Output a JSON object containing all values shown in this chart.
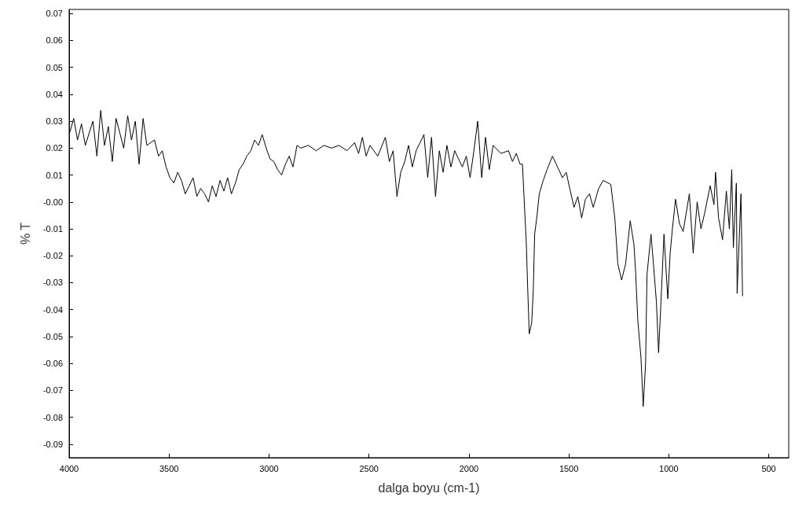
{
  "chart_data": {
    "type": "line",
    "xlabel": "dalga boyu (cm-1)",
    "ylabel": "% T",
    "xlim": [
      4000,
      400
    ],
    "xticks": [
      4000,
      3500,
      3000,
      2500,
      2000,
      1500,
      1000,
      500
    ],
    "ylim": [
      -0.095,
      0.0715
    ],
    "yticks": [
      0.07,
      0.06,
      0.05,
      0.04,
      0.03,
      0.02,
      0.01,
      {
        "value": 0,
        "label": "-0.00"
      },
      -0.01,
      -0.02,
      -0.03,
      -0.04,
      -0.05,
      -0.06,
      -0.07,
      -0.08,
      -0.09
    ],
    "grid": false,
    "marker": "none",
    "line_style": "solid",
    "series": [
      {
        "color": "#000000",
        "x": [
          3996,
          3977,
          3958,
          3938,
          3919,
          3881,
          3861,
          3842,
          3823,
          3804,
          3784,
          3765,
          3727,
          3707,
          3688,
          3669,
          3650,
          3630,
          3611,
          3573,
          3553,
          3534,
          3515,
          3496,
          3476,
          3457,
          3438,
          3419,
          3399,
          3380,
          3361,
          3342,
          3322,
          3303,
          3284,
          3265,
          3245,
          3226,
          3207,
          3188,
          3168,
          3149,
          3130,
          3111,
          3091,
          3072,
          3053,
          3034,
          3014,
          2995,
          2976,
          2957,
          2937,
          2918,
          2899,
          2880,
          2860,
          2841,
          2803,
          2764,
          2726,
          2687,
          2649,
          2610,
          2572,
          2552,
          2533,
          2514,
          2495,
          2456,
          2418,
          2398,
          2379,
          2360,
          2341,
          2321,
          2302,
          2283,
          2264,
          2225,
          2206,
          2187,
          2167,
          2148,
          2129,
          2110,
          2090,
          2071,
          2033,
          2013,
          1994,
          1975,
          1956,
          1936,
          1917,
          1898,
          1879,
          1840,
          1802,
          1782,
          1763,
          1744,
          1732,
          1725,
          1713,
          1705,
          1698,
          1686,
          1678,
          1671,
          1659,
          1648,
          1628,
          1609,
          1582,
          1563,
          1532,
          1513,
          1494,
          1474,
          1455,
          1436,
          1417,
          1397,
          1378,
          1351,
          1328,
          1290,
          1270,
          1255,
          1236,
          1216,
          1193,
          1174,
          1166,
          1155,
          1139,
          1128,
          1116,
          1109,
          1089,
          1078,
          1062,
          1051,
          1039,
          1024,
          1005,
          993,
          982,
          966,
          947,
          928,
          897,
          878,
          858,
          839,
          820,
          793,
          774,
          766,
          751,
          731,
          712,
          697,
          685,
          677,
          662,
          658,
          639,
          631
        ],
        "values": [
          0.026,
          0.031,
          0.023,
          0.029,
          0.021,
          0.03,
          0.017,
          0.034,
          0.021,
          0.028,
          0.015,
          0.031,
          0.02,
          0.032,
          0.023,
          0.03,
          0.014,
          0.031,
          0.021,
          0.023,
          0.017,
          0.019,
          0.013,
          0.009,
          0.007,
          0.011,
          0.008,
          0.003,
          0.006,
          0.009,
          0.002,
          0.005,
          0.003,
          0.0,
          0.006,
          0.002,
          0.008,
          0.004,
          0.009,
          0.003,
          0.007,
          0.012,
          0.014,
          0.017,
          0.019,
          0.023,
          0.021,
          0.025,
          0.02,
          0.016,
          0.015,
          0.012,
          0.01,
          0.014,
          0.017,
          0.013,
          0.021,
          0.02,
          0.021,
          0.019,
          0.021,
          0.02,
          0.021,
          0.019,
          0.022,
          0.018,
          0.024,
          0.017,
          0.021,
          0.017,
          0.024,
          0.015,
          0.019,
          0.002,
          0.011,
          0.015,
          0.021,
          0.013,
          0.019,
          0.025,
          0.009,
          0.024,
          0.002,
          0.019,
          0.011,
          0.021,
          0.013,
          0.019,
          0.013,
          0.017,
          0.009,
          0.019,
          0.03,
          0.009,
          0.024,
          0.012,
          0.021,
          0.018,
          0.019,
          0.015,
          0.018,
          0.014,
          0.014,
          0.003,
          -0.015,
          -0.034,
          -0.049,
          -0.045,
          -0.033,
          -0.012,
          -0.005,
          0.003,
          0.008,
          0.012,
          0.017,
          0.014,
          0.009,
          0.011,
          0.0045,
          -0.002,
          0.002,
          -0.006,
          0.001,
          0.003,
          -0.002,
          0.005,
          0.008,
          0.0065,
          -0.006,
          -0.023,
          -0.029,
          -0.023,
          -0.007,
          -0.016,
          -0.026,
          -0.044,
          -0.058,
          -0.076,
          -0.06,
          -0.027,
          -0.012,
          -0.022,
          -0.037,
          -0.056,
          -0.037,
          -0.012,
          -0.036,
          -0.019,
          -0.01,
          0.001,
          -0.008,
          -0.011,
          0.003,
          -0.019,
          0.0,
          -0.01,
          -0.004,
          0.006,
          -0.001,
          0.011,
          -0.006,
          -0.014,
          0.004,
          -0.01,
          0.012,
          -0.017,
          0.007,
          -0.034,
          0.003,
          -0.035
        ]
      }
    ]
  }
}
